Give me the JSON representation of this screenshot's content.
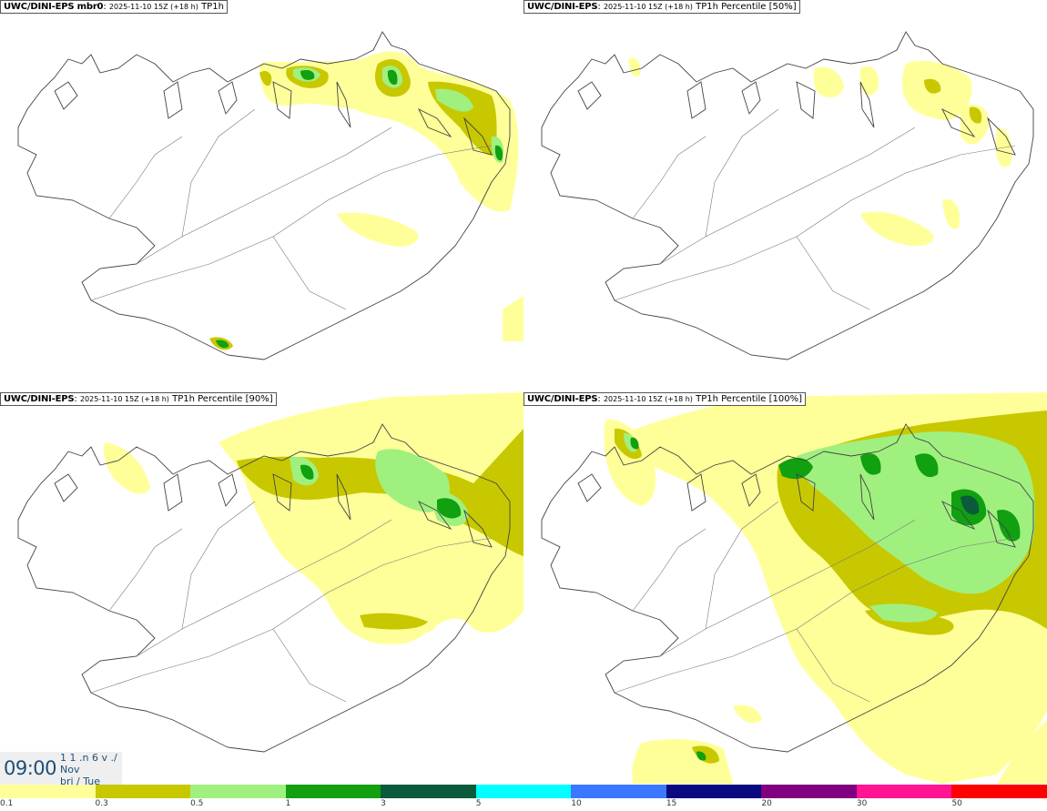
{
  "panels": [
    {
      "run": "UWC/DINI-EPS mbr0",
      "meta": "2025-11-10 15Z (+18 h)",
      "param": "TP1h"
    },
    {
      "run": "UWC/DINI-EPS",
      "meta": "2025-11-10 15Z (+18 h)",
      "param": "TP1h Percentile [50%]"
    },
    {
      "run": "UWC/DINI-EPS",
      "meta": "2025-11-10 15Z (+18 h)",
      "param": "TP1h Percentile [90%]"
    },
    {
      "run": "UWC/DINI-EPS",
      "meta": "2025-11-10 15Z (+18 h)",
      "param": "TP1h Percentile [100%]"
    }
  ],
  "valid_time": {
    "hour": "09:00",
    "line1": "1 1 .n 6 v ./",
    "line2": "Nov",
    "line3": "bri / Tue"
  },
  "colorbar": {
    "colors": [
      "#ffff99",
      "#c8c800",
      "#a0f080",
      "#10a010",
      "#0a5a3c",
      "#00ffff",
      "#3c78ff",
      "#0a0a80",
      "#800080",
      "#ff1493",
      "#ff0000"
    ],
    "ticks": [
      "0.1",
      "0.3",
      "0.5",
      "1",
      "3",
      "5",
      "10",
      "15",
      "20",
      "30",
      "50"
    ]
  },
  "colors": {
    "coast": "#444444",
    "timebox_text": "#1d4e7a"
  }
}
